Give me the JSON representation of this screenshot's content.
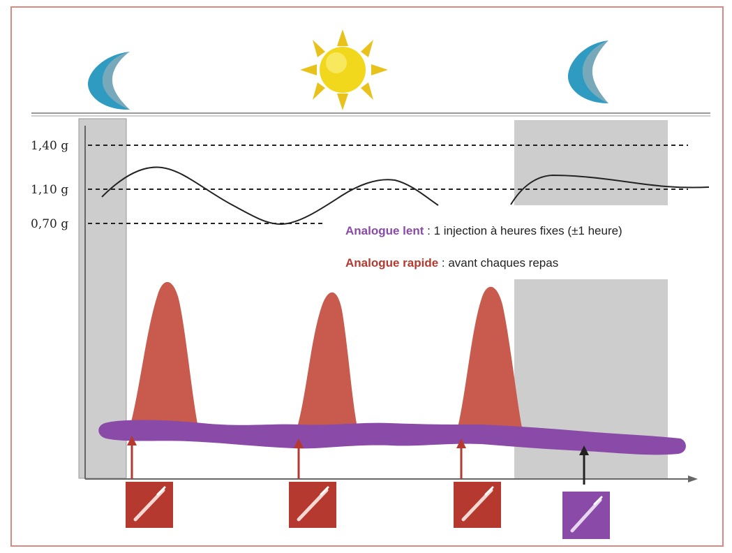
{
  "colors": {
    "frame": "#d98a80",
    "shade": "#cdcdcd",
    "rapid": "#c95b4e",
    "rapid_dark": "#b5392f",
    "slow": "#8a4aa8",
    "moon": "#2f9bc0",
    "sun": "#f2d81c",
    "curve": "#222222",
    "axis": "#666666"
  },
  "icons": {
    "moon_left": "crescent-moon-icon",
    "sun": "sun-icon",
    "moon_right": "crescent-moon-icon",
    "pen": "insulin-pen-icon"
  },
  "y_labels": {
    "high": "1,40 g",
    "mid": "1,10 g",
    "low": "0,70 g"
  },
  "legend": {
    "slow_name": "Analogue lent",
    "slow_desc": " : 1 injection à heures fixes (±1 heure)",
    "rapid_name": "Analogue rapide",
    "rapid_desc": " : avant chaques repas"
  },
  "injections": [
    {
      "type": "rapid",
      "event": "meal 1"
    },
    {
      "type": "rapid",
      "event": "meal 2"
    },
    {
      "type": "rapid",
      "event": "meal 3"
    },
    {
      "type": "slow",
      "event": "evening"
    }
  ]
}
